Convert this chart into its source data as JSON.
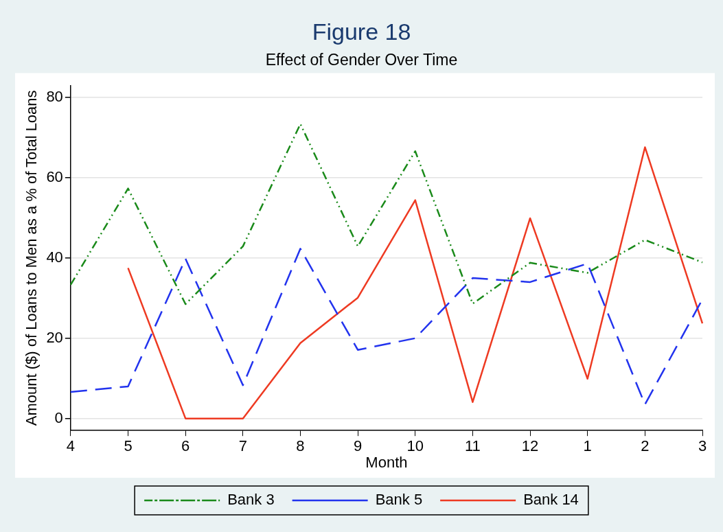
{
  "chart_data": {
    "type": "line",
    "title": "Figure 18",
    "subtitle": "Effect of Gender Over Time",
    "xlabel": "Month",
    "ylabel": "Amount ($) of Loans to Men as a % of Total Loans",
    "categories": [
      "4",
      "5",
      "6",
      "7",
      "8",
      "9",
      "10",
      "11",
      "12",
      "1",
      "2",
      "3"
    ],
    "series": [
      {
        "name": "Bank 3",
        "color": "#1a8a1a",
        "line_style": "dotted",
        "values": [
          33.3,
          57.3,
          28.5,
          42.9,
          73.4,
          42.9,
          66.6,
          28.6,
          38.8,
          36.3,
          44.5,
          38.9
        ]
      },
      {
        "name": "Bank 5",
        "color": "#2233ee",
        "line_style": "dashed",
        "values": [
          6.6,
          8,
          39.8,
          8.3,
          42.3,
          17.1,
          20,
          35,
          34,
          38.6,
          3.5,
          29.7
        ]
      },
      {
        "name": "Bank 14",
        "color": "#ee3a22",
        "line_style": "solid",
        "values": [
          null,
          37.5,
          0,
          0,
          18.8,
          30.1,
          54.4,
          4.1,
          49.9,
          9.9,
          67.6,
          23.7
        ]
      }
    ],
    "ylim": [
      -3,
      83
    ],
    "yticks": [
      0,
      20,
      40,
      60,
      80
    ],
    "grid": "y",
    "legend": "bottom",
    "marker": "none"
  }
}
